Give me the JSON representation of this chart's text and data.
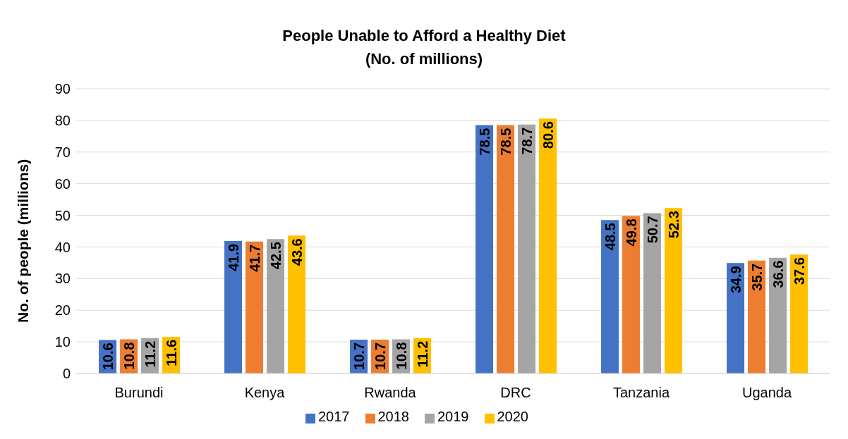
{
  "chart_data": {
    "type": "bar",
    "title": "People Unable to Afford a Healthy Diet",
    "subtitle": "(No. of millions)",
    "ylabel": "No. of people (millions)",
    "categories": [
      "Burundi",
      "Kenya",
      "Rwanda",
      "DRC",
      "Tanzania",
      "Uganda"
    ],
    "series": [
      {
        "name": "2017",
        "color": "#4472c4",
        "values": [
          10.6,
          41.9,
          10.7,
          78.5,
          48.5,
          34.9
        ]
      },
      {
        "name": "2018",
        "color": "#ed7d31",
        "values": [
          10.8,
          41.7,
          10.7,
          78.5,
          49.8,
          35.7
        ]
      },
      {
        "name": "2019",
        "color": "#a5a5a5",
        "values": [
          11.2,
          42.5,
          10.8,
          78.7,
          50.7,
          36.6
        ]
      },
      {
        "name": "2020",
        "color": "#ffc000",
        "values": [
          11.6,
          43.6,
          11.2,
          80.6,
          52.3,
          37.6
        ]
      }
    ],
    "ylim": [
      0,
      90
    ],
    "yticks": [
      0,
      10,
      20,
      30,
      40,
      50,
      60,
      70,
      80,
      90
    ],
    "grid": "y",
    "legend": "bottom",
    "data_labels": true
  }
}
